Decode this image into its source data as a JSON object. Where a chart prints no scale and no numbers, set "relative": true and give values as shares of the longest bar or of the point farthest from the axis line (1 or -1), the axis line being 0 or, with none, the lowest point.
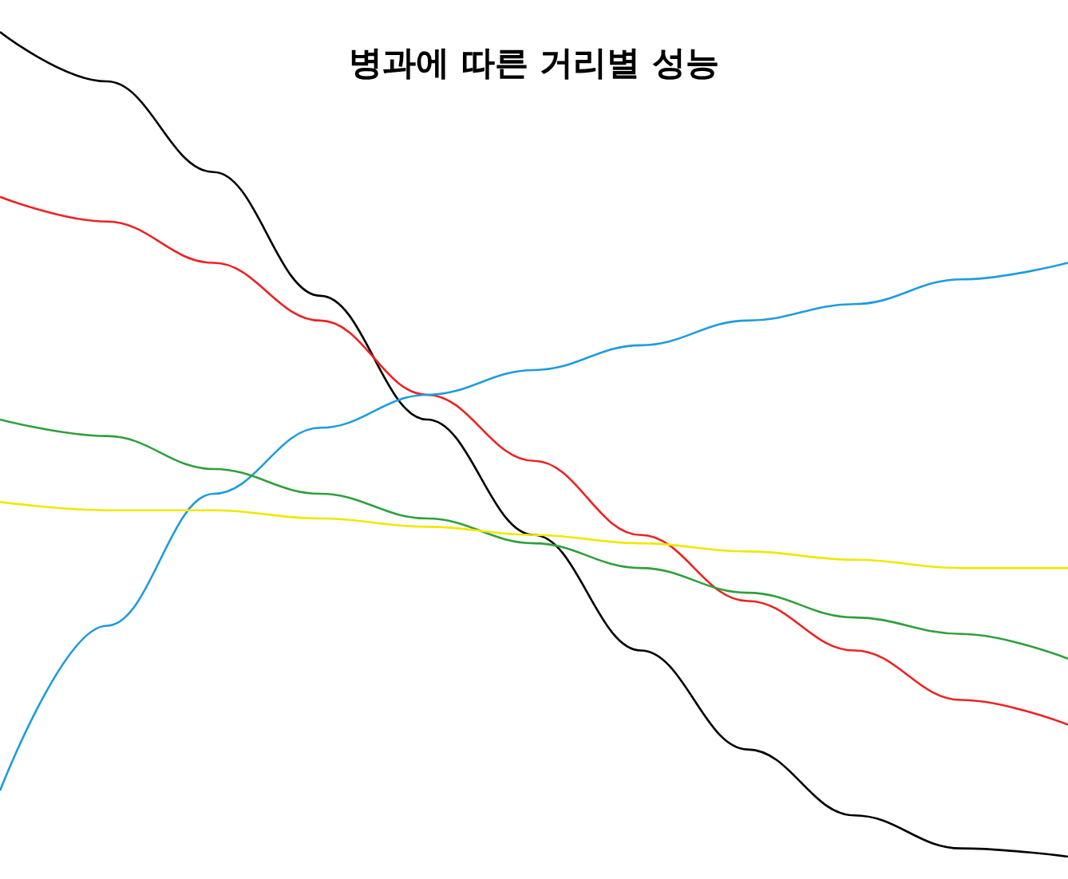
{
  "chart_data": {
    "type": "line",
    "title": "병과에 따른 거리별 성능",
    "relative": true,
    "marker": "none",
    "categories": [
      null,
      null,
      null,
      null,
      null,
      null,
      null,
      null,
      null,
      null,
      null
    ],
    "series": [
      {
        "color": "#000000",
        "values": [
          1.0,
          0.94,
          0.83,
          0.68,
          0.53,
          0.39,
          0.25,
          0.13,
          0.05,
          0.01,
          0
        ]
      },
      {
        "color": "#ee2222",
        "values": [
          0.8,
          0.77,
          0.72,
          0.65,
          0.56,
          0.48,
          0.39,
          0.31,
          0.25,
          0.19,
          0.16
        ]
      },
      {
        "color": "#1e9be0",
        "values": [
          0.08,
          0.28,
          0.44,
          0.52,
          0.56,
          0.59,
          0.62,
          0.65,
          0.67,
          0.7,
          0.72
        ]
      },
      {
        "color": "#2ea03a",
        "values": [
          0.53,
          0.51,
          0.47,
          0.44,
          0.41,
          0.38,
          0.35,
          0.32,
          0.29,
          0.27,
          0.24
        ]
      },
      {
        "color": "#f0e800",
        "values": [
          0.43,
          0.42,
          0.42,
          0.41,
          0.4,
          0.39,
          0.38,
          0.37,
          0.36,
          0.35,
          0.35
        ]
      }
    ]
  }
}
